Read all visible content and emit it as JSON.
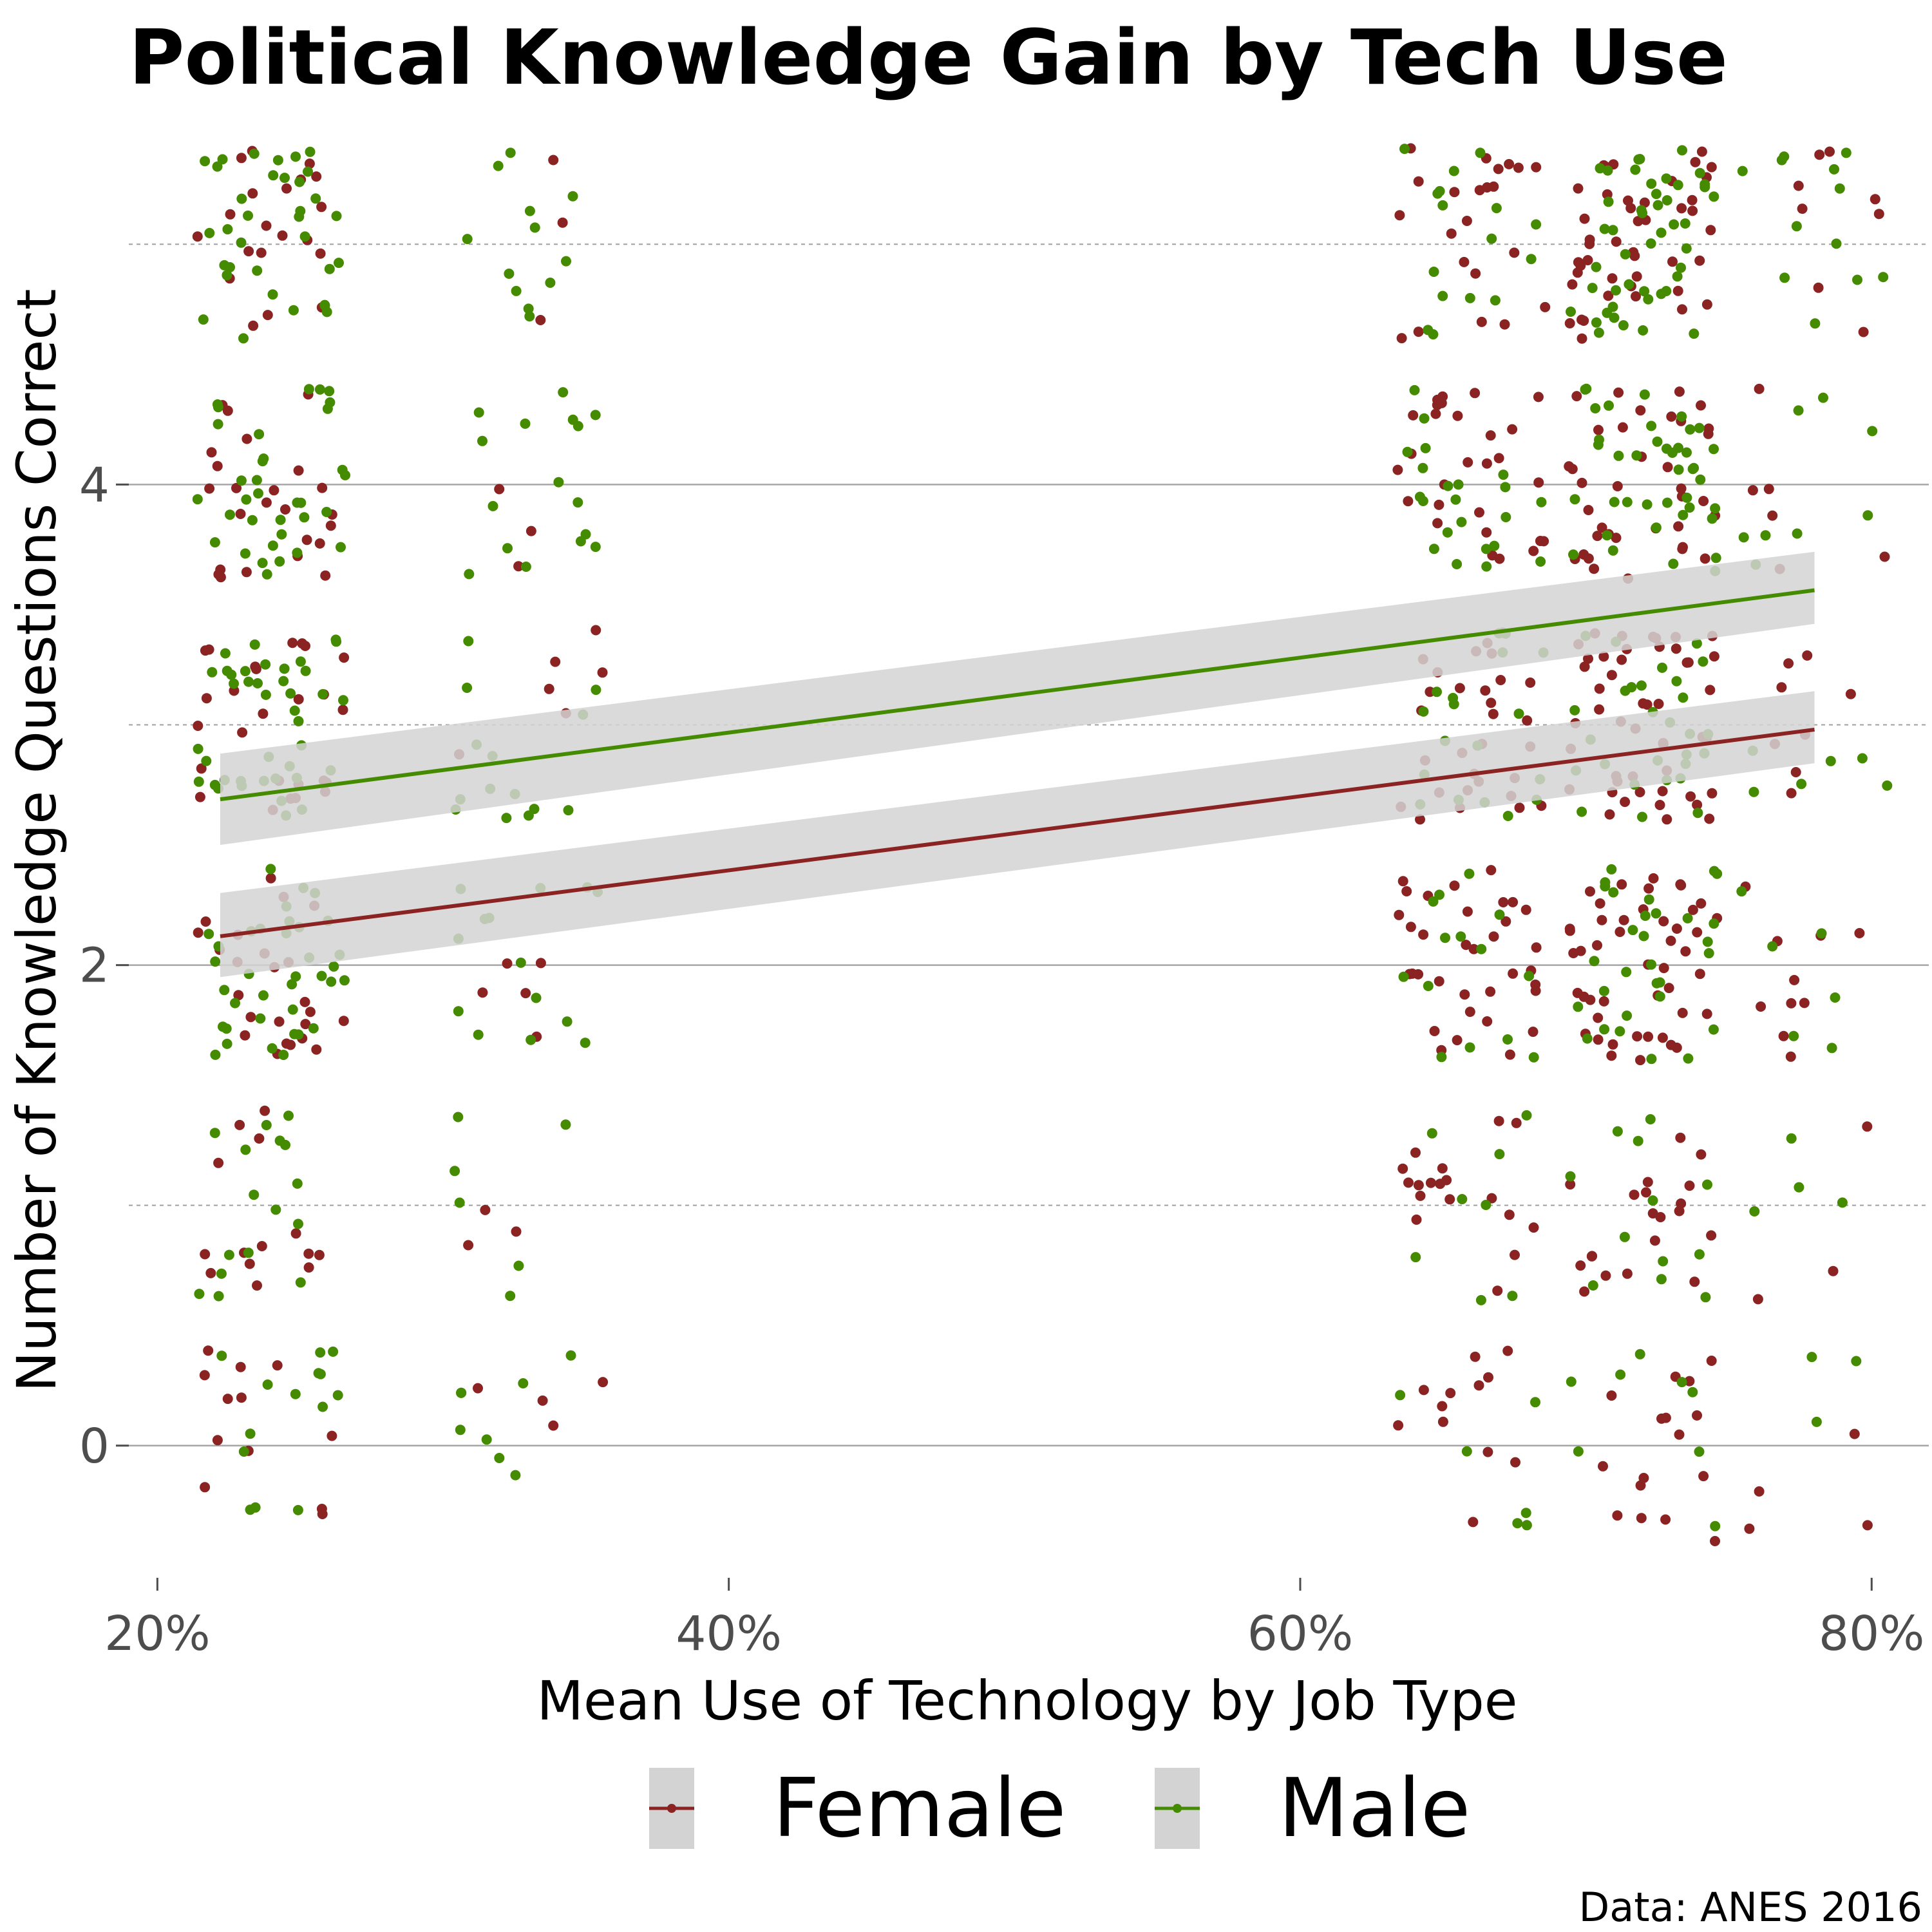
{
  "chart_data": {
    "type": "scatter",
    "title": "Political Knowledge Gain by Tech Use",
    "xlabel": "Mean Use of Technology by Job Type",
    "ylabel": "Number of Knowledge Questions Correct",
    "caption": "Data: ANES 2016",
    "xlim": [
      0.19,
      0.82
    ],
    "ylim": [
      -0.55,
      5.4
    ],
    "x_ticks": [
      {
        "value": 0.2,
        "label": "20%"
      },
      {
        "value": 0.4,
        "label": "40%"
      },
      {
        "value": 0.6,
        "label": "60%"
      },
      {
        "value": 0.8,
        "label": "80%"
      }
    ],
    "y_ticks": [
      {
        "value": 0,
        "label": "0"
      },
      {
        "value": 2,
        "label": "2"
      },
      {
        "value": 4,
        "label": "4"
      }
    ],
    "y_minor_grid": [
      1,
      3,
      5
    ],
    "grid": "horizontal",
    "jitter": {
      "x": 0.026,
      "y": 0.4
    },
    "job_type_tech_use": [
      0.24,
      0.33,
      0.66,
      0.72,
      0.78
    ],
    "knowledge_levels": [
      0,
      1,
      2,
      3,
      4,
      5
    ],
    "legend": {
      "position": "bottom",
      "entries": [
        "Female",
        "Male"
      ]
    },
    "series": [
      {
        "name": "Female",
        "color": "#8b2323",
        "points_per_job_type_and_level": [
          [
            12,
            14,
            24,
            26,
            24,
            20
          ],
          [
            4,
            3,
            5,
            6,
            3,
            3
          ],
          [
            12,
            18,
            34,
            30,
            28,
            22
          ],
          [
            16,
            20,
            46,
            48,
            36,
            44
          ],
          [
            4,
            3,
            10,
            8,
            6,
            8
          ]
        ],
        "trend": {
          "x": [
            0.222,
            0.78
          ],
          "y": [
            2.12,
            2.98
          ],
          "ci_low": [
            1.95,
            2.84
          ],
          "ci_high": [
            2.3,
            3.14
          ]
        }
      },
      {
        "name": "Male",
        "color": "#458b00",
        "points_per_job_type_and_level": [
          [
            14,
            16,
            36,
            40,
            34,
            34
          ],
          [
            8,
            6,
            14,
            14,
            16,
            12
          ],
          [
            6,
            8,
            14,
            18,
            22,
            16
          ],
          [
            8,
            12,
            30,
            28,
            40,
            46
          ],
          [
            3,
            4,
            6,
            6,
            8,
            12
          ]
        ],
        "trend": {
          "x": [
            0.222,
            0.78
          ],
          "y": [
            2.69,
            3.56
          ],
          "ci_low": [
            2.5,
            3.42
          ],
          "ci_high": [
            2.88,
            3.72
          ]
        }
      }
    ],
    "ribbon_color": "#d3d3d3"
  }
}
